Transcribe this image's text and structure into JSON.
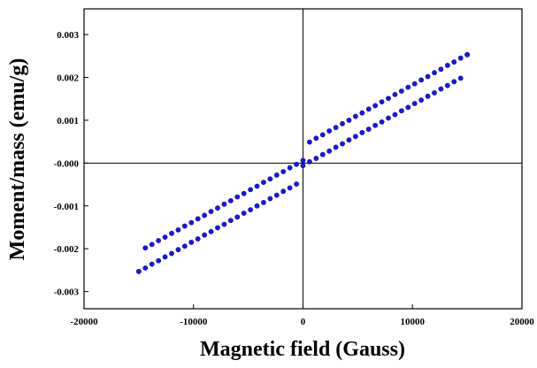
{
  "chart_data": {
    "type": "scatter",
    "title": "",
    "xlabel": "Magnetic field (Gauss)",
    "ylabel": "Moment/mass (emu/g)",
    "xlim": [
      -20000,
      20000
    ],
    "ylim": [
      -0.0034,
      0.0036
    ],
    "x_ticks": [
      {
        "value": -20000,
        "label": "-20000"
      },
      {
        "value": -10000,
        "label": "-10000"
      },
      {
        "value": 0,
        "label": "0"
      },
      {
        "value": 10000,
        "label": "10000"
      },
      {
        "value": 20000,
        "label": "20000"
      }
    ],
    "y_ticks": [
      {
        "value": 0.003,
        "label": "0.003"
      },
      {
        "value": 0.002,
        "label": "0.002"
      },
      {
        "value": 0.001,
        "label": "0.001"
      },
      {
        "value": 0.0,
        "label": "-0.000"
      },
      {
        "value": -0.001,
        "label": "-0.001"
      },
      {
        "value": -0.002,
        "label": "-0.002"
      },
      {
        "value": -0.003,
        "label": "-0.003"
      }
    ],
    "grid": false,
    "zero_lines": true,
    "marker_color": "#1a1ad6",
    "series": [
      {
        "x": [
          15000,
          14400,
          13800,
          13200,
          12600,
          12000,
          11400,
          10800,
          10200,
          9600,
          9000,
          8400,
          7800,
          7200,
          6600,
          6000,
          5400,
          4800,
          4200,
          3600,
          3000,
          2400,
          1800,
          1200,
          600,
          0,
          -600,
          -1200,
          -1800,
          -2400,
          -3000,
          -3600,
          -4200,
          -4800,
          -5400,
          -6000,
          -6600,
          -7200,
          -7800,
          -8400,
          -9000,
          -9600,
          -10200,
          -10800,
          -11400,
          -12000,
          -12600,
          -13200,
          -13800,
          -14400,
          -15000
        ],
        "y": [
          0.00253,
          0.00245,
          0.00236,
          0.00228,
          0.00219,
          0.00211,
          0.00202,
          0.00194,
          0.00185,
          0.00177,
          0.00168,
          0.0016,
          0.00151,
          0.00143,
          0.00134,
          0.00126,
          0.00117,
          0.00109,
          0.001,
          0.00092,
          0.00083,
          0.00075,
          0.00066,
          0.00058,
          0.00049,
          6e-05,
          -3e-05,
          -0.00011,
          -0.0002,
          -0.00028,
          -0.00037,
          -0.00045,
          -0.00054,
          -0.00062,
          -0.00071,
          -0.00079,
          -0.00088,
          -0.00096,
          -0.00105,
          -0.00113,
          -0.00122,
          -0.0013,
          -0.00139,
          -0.00147,
          -0.00156,
          -0.00164,
          -0.00173,
          -0.00181,
          -0.0019,
          -0.00198,
          -0.00253
        ]
      },
      {
        "x": [
          -15000,
          -14400,
          -13800,
          -13200,
          -12600,
          -12000,
          -11400,
          -10800,
          -10200,
          -9600,
          -9000,
          -8400,
          -7800,
          -7200,
          -6600,
          -6000,
          -5400,
          -4800,
          -4200,
          -3600,
          -3000,
          -2400,
          -1800,
          -1200,
          -600,
          0,
          600,
          1200,
          1800,
          2400,
          3000,
          3600,
          4200,
          4800,
          5400,
          6000,
          6600,
          7200,
          7800,
          8400,
          9000,
          9600,
          10200,
          10800,
          11400,
          12000,
          12600,
          13200,
          13800,
          14400,
          15000
        ],
        "y": [
          -0.00253,
          -0.00245,
          -0.00236,
          -0.00228,
          -0.00219,
          -0.00211,
          -0.00202,
          -0.00194,
          -0.00185,
          -0.00177,
          -0.00168,
          -0.0016,
          -0.00151,
          -0.00143,
          -0.00134,
          -0.00126,
          -0.00117,
          -0.00109,
          -0.001,
          -0.00092,
          -0.00083,
          -0.00075,
          -0.00066,
          -0.00058,
          -0.00049,
          -6e-05,
          3e-05,
          0.00011,
          0.0002,
          0.00028,
          0.00037,
          0.00045,
          0.00054,
          0.00062,
          0.00071,
          0.00079,
          0.00088,
          0.00096,
          0.00105,
          0.00113,
          0.00122,
          0.0013,
          0.00139,
          0.00147,
          0.00156,
          0.00164,
          0.00173,
          0.00181,
          0.0019,
          0.00198,
          0.00253
        ]
      }
    ]
  }
}
